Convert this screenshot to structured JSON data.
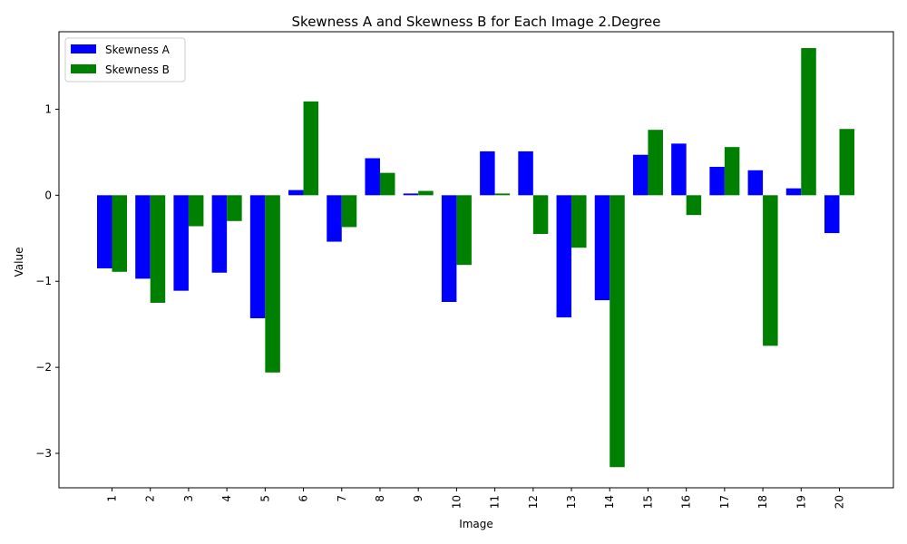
{
  "chart_data": {
    "type": "bar",
    "title": "Skewness A and Skewness B for Each Image 2.Degree",
    "xlabel": "Image",
    "ylabel": "Value",
    "categories": [
      "1",
      "2",
      "3",
      "4",
      "5",
      "6",
      "7",
      "8",
      "9",
      "10",
      "11",
      "12",
      "13",
      "14",
      "15",
      "16",
      "17",
      "18",
      "19",
      "20"
    ],
    "series": [
      {
        "name": "Skewness A",
        "color": "#0000ff",
        "values": [
          -0.85,
          -0.97,
          -1.11,
          -0.9,
          -1.43,
          0.06,
          -0.54,
          0.43,
          0.02,
          -1.24,
          0.51,
          0.51,
          -1.42,
          -1.22,
          0.47,
          0.6,
          0.33,
          0.29,
          0.08,
          -0.44
        ]
      },
      {
        "name": "Skewness B",
        "color": "#008000",
        "values": [
          -0.89,
          -1.25,
          -0.36,
          -0.3,
          -2.06,
          1.09,
          -0.37,
          0.26,
          0.05,
          -0.81,
          0.02,
          -0.45,
          -0.61,
          -3.16,
          0.76,
          -0.23,
          0.56,
          -1.75,
          1.71,
          0.77
        ]
      }
    ],
    "ylim": [
      -3.4,
      1.9
    ],
    "yticks": [
      -3,
      -2,
      -1,
      0,
      1
    ],
    "ytick_labels": [
      "−3",
      "−2",
      "−1",
      "0",
      "1"
    ],
    "grid": false,
    "legend_position": "upper-left"
  }
}
